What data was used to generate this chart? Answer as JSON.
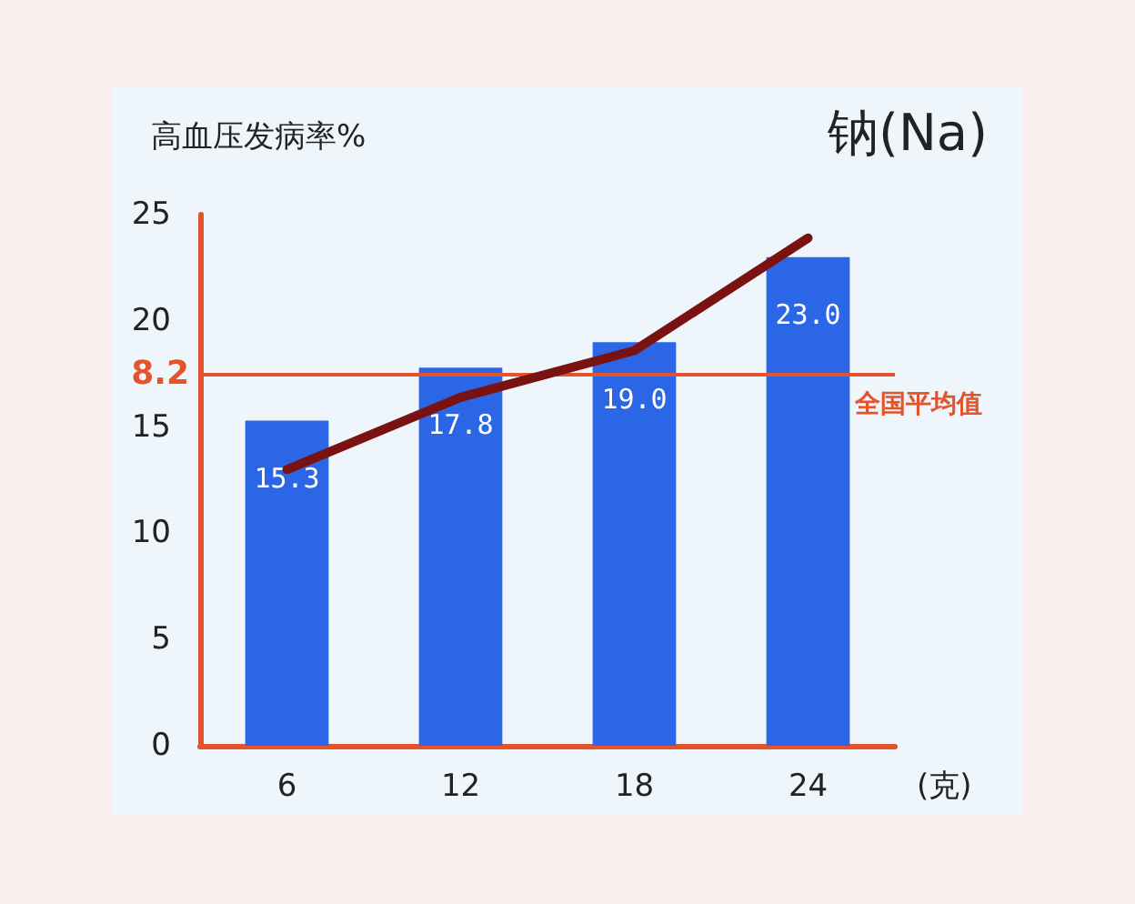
{
  "chart_data": {
    "type": "bar",
    "title": "钠(Na)",
    "ylabel": "高血压发病率%",
    "xlabel": "(克)",
    "categories": [
      "6",
      "12",
      "18",
      "24"
    ],
    "series": [
      {
        "color": "#2b66e6",
        "values": [
          15.3,
          17.8,
          19.0,
          23.0
        ],
        "value_labels": [
          "15.3",
          "17.8",
          "19.0",
          "23.0"
        ]
      },
      {
        "type": "line",
        "color": "#7a1212",
        "values": [
          13.0,
          16.4,
          18.6,
          23.9
        ],
        "marker": "none",
        "line_style": "solid"
      }
    ],
    "ylim": [
      0,
      25
    ],
    "yticks": [
      0,
      5,
      10,
      15,
      20,
      25
    ],
    "annotations": [
      "8.2"
    ],
    "ref_lines": [
      {
        "axis": "y",
        "value": 17.5,
        "label": "全国平均值",
        "color": "#e4532a"
      }
    ]
  }
}
